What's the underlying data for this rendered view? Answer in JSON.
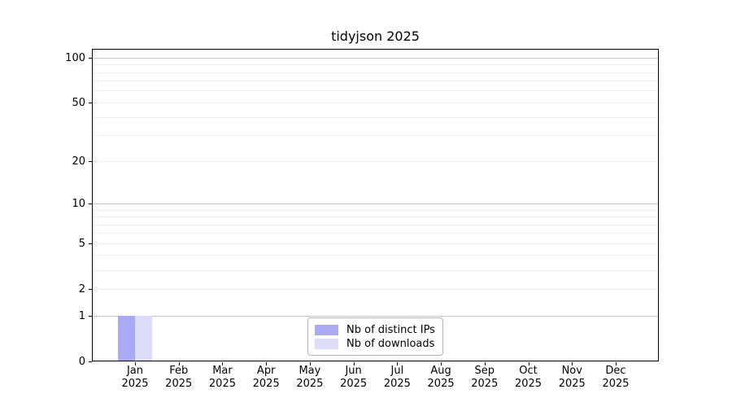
{
  "chart_data": {
    "type": "bar",
    "title": "tidyjson 2025",
    "categories": [
      "Jan",
      "Feb",
      "Mar",
      "Apr",
      "May",
      "Jun",
      "Jul",
      "Aug",
      "Sep",
      "Oct",
      "Nov",
      "Dec"
    ],
    "category_year": "2025",
    "series": [
      {
        "name": "Nb of distinct IPs",
        "color": "#a9a9f4",
        "values": [
          1,
          0,
          0,
          0,
          0,
          0,
          0,
          0,
          0,
          0,
          0,
          0
        ]
      },
      {
        "name": "Nb of downloads",
        "color": "#dcdcf8",
        "values": [
          1,
          0,
          0,
          0,
          0,
          0,
          0,
          0,
          0,
          0,
          0,
          0
        ]
      }
    ],
    "xlabel": "",
    "ylabel": "",
    "y_axis": {
      "scale": "log1p",
      "ticks": [
        0,
        1,
        2,
        5,
        10,
        20,
        50,
        100
      ],
      "minor_gridlines": [
        2,
        3,
        4,
        5,
        6,
        7,
        8,
        9,
        20,
        30,
        40,
        50,
        60,
        70,
        80,
        90
      ],
      "major_gridlines": [
        1,
        10,
        100
      ]
    },
    "legend": {
      "position": "lower center"
    },
    "colors": {
      "grid_minor": "#efefef",
      "grid_major": "#c6c6c6",
      "axis": "#000000",
      "legend_border": "#b4b4b4",
      "background": "#ffffff"
    }
  }
}
